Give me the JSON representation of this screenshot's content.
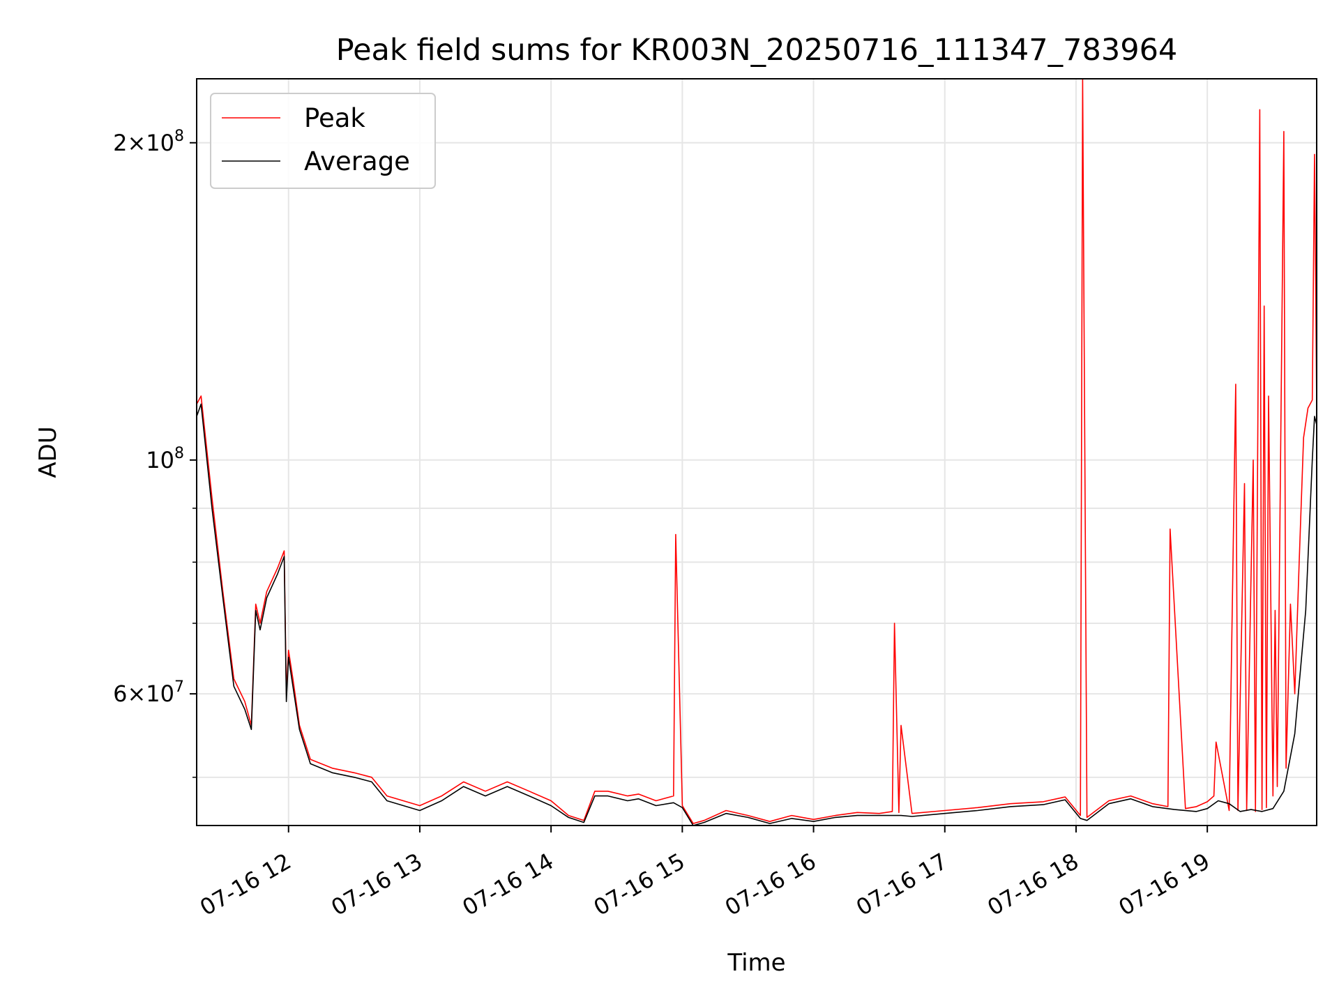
{
  "chart_data": {
    "type": "line",
    "title": "Peak field sums for KR003N_20250716_111347_783964",
    "xlabel": "Time",
    "ylabel": "ADU",
    "x_range": [
      "07-16 11:18",
      "07-16 19:50"
    ],
    "y_scale": "log",
    "y_range": [
      45000000,
      230000000
    ],
    "grid": true,
    "legend_position": "upper-left",
    "x_tick_labels": [
      "07-16 12",
      "07-16 13",
      "07-16 14",
      "07-16 15",
      "07-16 16",
      "07-16 17",
      "07-16 18",
      "07-16 19"
    ],
    "y_tick_labels": [
      {
        "value": 200000000,
        "mantissa": "2",
        "exponent": "8"
      },
      {
        "value": 100000000,
        "mantissa": "",
        "exponent": "8"
      },
      {
        "value": 60000000,
        "mantissa": "6",
        "exponent": "7"
      }
    ],
    "y_minor_ticks": [
      50000000,
      70000000,
      80000000,
      90000000
    ],
    "series": [
      {
        "name": "Peak",
        "color": "#ff0000",
        "x": [
          "07-16 11:18",
          "07-16 11:20",
          "07-16 11:25",
          "07-16 11:30",
          "07-16 11:35",
          "07-16 11:40",
          "07-16 11:43",
          "07-16 11:45",
          "07-16 11:47",
          "07-16 11:50",
          "07-16 11:55",
          "07-16 11:58",
          "07-16 11:59",
          "07-16 12:00",
          "07-16 12:02",
          "07-16 12:05",
          "07-16 12:10",
          "07-16 12:20",
          "07-16 12:30",
          "07-16 12:38",
          "07-16 12:45",
          "07-16 13:00",
          "07-16 13:10",
          "07-16 13:20",
          "07-16 13:30",
          "07-16 13:40",
          "07-16 13:50",
          "07-16 14:00",
          "07-16 14:08",
          "07-16 14:15",
          "07-16 14:20",
          "07-16 14:26",
          "07-16 14:35",
          "07-16 14:40",
          "07-16 14:48",
          "07-16 14:56",
          "07-16 14:57",
          "07-16 15:00",
          "07-16 15:05",
          "07-16 15:10",
          "07-16 15:20",
          "07-16 15:30",
          "07-16 15:40",
          "07-16 15:50",
          "07-16 16:00",
          "07-16 16:10",
          "07-16 16:20",
          "07-16 16:30",
          "07-16 16:36",
          "07-16 16:37",
          "07-16 16:39",
          "07-16 16:40",
          "07-16 16:45",
          "07-16 17:00",
          "07-16 17:15",
          "07-16 17:30",
          "07-16 17:45",
          "07-16 17:55",
          "07-16 18:02",
          "07-16 18:03",
          "07-16 18:05",
          "07-16 18:15",
          "07-16 18:25",
          "07-16 18:35",
          "07-16 18:42",
          "07-16 18:43",
          "07-16 18:50",
          "07-16 18:55",
          "07-16 19:00",
          "07-16 19:03",
          "07-16 19:04",
          "07-16 19:10",
          "07-16 19:13",
          "07-16 19:14",
          "07-16 19:17",
          "07-16 19:18",
          "07-16 19:21",
          "07-16 19:22",
          "07-16 19:24",
          "07-16 19:25",
          "07-16 19:26",
          "07-16 19:27",
          "07-16 19:28",
          "07-16 19:30",
          "07-16 19:31",
          "07-16 19:32",
          "07-16 19:35",
          "07-16 19:36",
          "07-16 19:38",
          "07-16 19:40",
          "07-16 19:42",
          "07-16 19:44",
          "07-16 19:46",
          "07-16 19:48",
          "07-16 19:49",
          "07-16 19:50"
        ],
        "y": [
          113000000,
          115000000,
          92000000,
          75000000,
          62000000,
          59000000,
          56000000,
          73000000,
          70000000,
          75000000,
          79000000,
          82000000,
          60000000,
          66000000,
          62000000,
          56000000,
          52000000,
          51000000,
          50500000,
          50000000,
          48000000,
          47000000,
          48000000,
          49500000,
          48500000,
          49500000,
          48500000,
          47500000,
          46000000,
          45500000,
          48500000,
          48500000,
          48000000,
          48200000,
          47500000,
          48000000,
          85000000,
          47000000,
          45200000,
          45500000,
          46500000,
          46000000,
          45400000,
          46000000,
          45600000,
          46000000,
          46300000,
          46200000,
          46400000,
          70000000,
          46300000,
          56000000,
          46200000,
          46500000,
          46800000,
          47200000,
          47400000,
          47900000,
          46000000,
          230000000,
          45800000,
          47500000,
          48000000,
          47200000,
          46900000,
          86000000,
          46700000,
          46900000,
          47400000,
          48000000,
          54000000,
          46500000,
          118000000,
          46500000,
          95000000,
          46500000,
          100000000,
          46400000,
          215000000,
          46600000,
          140000000,
          46800000,
          115000000,
          48000000,
          72000000,
          49000000,
          205000000,
          51000000,
          73000000,
          60000000,
          80000000,
          105000000,
          112000000,
          114000000,
          195000000,
          112000000
        ]
      },
      {
        "name": "Average",
        "color": "#000000",
        "x": [
          "07-16 11:18",
          "07-16 11:20",
          "07-16 11:25",
          "07-16 11:30",
          "07-16 11:35",
          "07-16 11:40",
          "07-16 11:43",
          "07-16 11:45",
          "07-16 11:47",
          "07-16 11:50",
          "07-16 11:55",
          "07-16 11:58",
          "07-16 11:59",
          "07-16 12:00",
          "07-16 12:02",
          "07-16 12:05",
          "07-16 12:10",
          "07-16 12:20",
          "07-16 12:30",
          "07-16 12:38",
          "07-16 12:45",
          "07-16 13:00",
          "07-16 13:10",
          "07-16 13:20",
          "07-16 13:30",
          "07-16 13:40",
          "07-16 13:50",
          "07-16 14:00",
          "07-16 14:08",
          "07-16 14:15",
          "07-16 14:20",
          "07-16 14:26",
          "07-16 14:35",
          "07-16 14:40",
          "07-16 14:48",
          "07-16 14:56",
          "07-16 15:00",
          "07-16 15:05",
          "07-16 15:10",
          "07-16 15:20",
          "07-16 15:30",
          "07-16 15:40",
          "07-16 15:50",
          "07-16 16:00",
          "07-16 16:10",
          "07-16 16:20",
          "07-16 16:30",
          "07-16 16:40",
          "07-16 16:45",
          "07-16 17:00",
          "07-16 17:15",
          "07-16 17:30",
          "07-16 17:45",
          "07-16 17:55",
          "07-16 18:02",
          "07-16 18:05",
          "07-16 18:15",
          "07-16 18:25",
          "07-16 18:35",
          "07-16 18:45",
          "07-16 18:55",
          "07-16 19:00",
          "07-16 19:05",
          "07-16 19:10",
          "07-16 19:15",
          "07-16 19:20",
          "07-16 19:25",
          "07-16 19:30",
          "07-16 19:35",
          "07-16 19:40",
          "07-16 19:45",
          "07-16 19:48",
          "07-16 19:49",
          "07-16 19:50"
        ],
        "y": [
          110000000,
          113000000,
          90000000,
          74000000,
          61000000,
          58000000,
          55500000,
          72000000,
          69000000,
          74000000,
          78000000,
          81000000,
          59000000,
          65000000,
          61000000,
          55500000,
          51500000,
          50500000,
          50000000,
          49500000,
          47500000,
          46500000,
          47500000,
          49000000,
          48000000,
          49000000,
          48000000,
          47000000,
          45800000,
          45300000,
          48000000,
          48000000,
          47500000,
          47700000,
          47000000,
          47300000,
          46800000,
          45000000,
          45300000,
          46200000,
          45800000,
          45200000,
          45700000,
          45400000,
          45800000,
          46000000,
          46000000,
          46000000,
          45900000,
          46200000,
          46500000,
          46900000,
          47100000,
          47600000,
          45700000,
          45500000,
          47200000,
          47700000,
          46900000,
          46600000,
          46400000,
          46700000,
          47500000,
          47200000,
          46400000,
          46600000,
          46400000,
          46700000,
          48500000,
          55000000,
          72000000,
          100000000,
          110000000,
          108000000
        ]
      }
    ],
    "legend_entries": [
      "Peak",
      "Average"
    ]
  }
}
